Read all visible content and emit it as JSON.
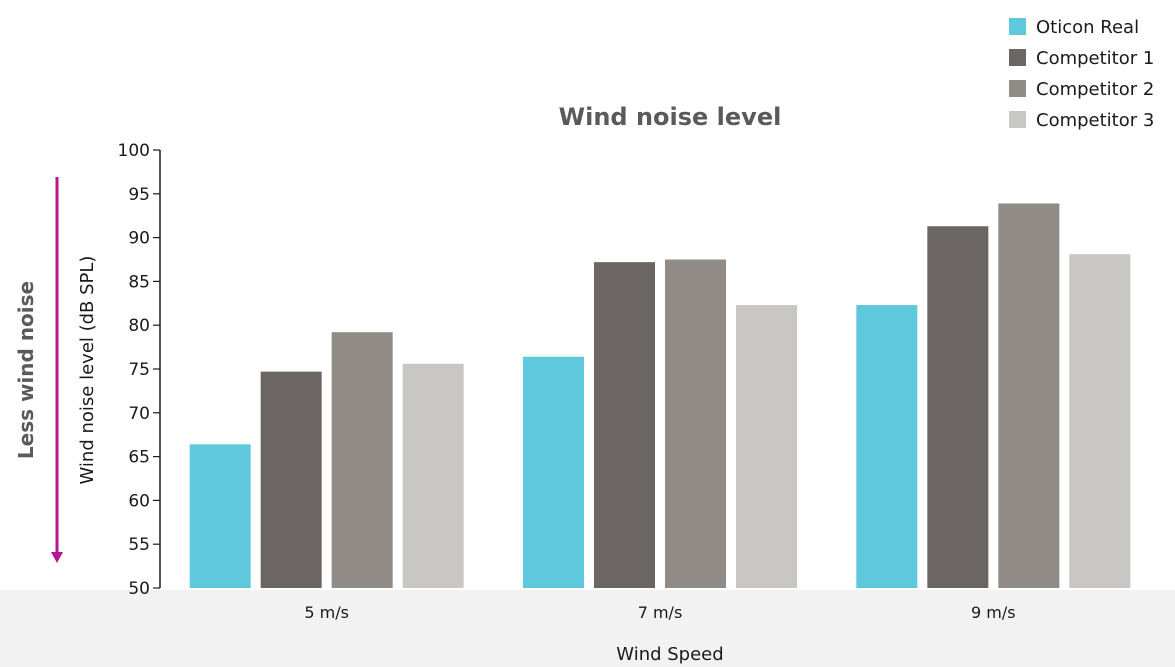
{
  "chart_data": {
    "type": "bar",
    "title": "Wind noise level",
    "xlabel": "Wind Speed",
    "ylabel": "Wind noise level (dB SPL)",
    "annotation": "Less wind noise",
    "categories": [
      "5 m/s",
      "7 m/s",
      "9 m/s"
    ],
    "ylim": [
      50,
      100
    ],
    "yticks": [
      50,
      55,
      60,
      65,
      70,
      75,
      80,
      85,
      90,
      95,
      100
    ],
    "grid": false,
    "legend_position": "top-right",
    "series": [
      {
        "name": "Oticon Real",
        "color": "#5ec9dc",
        "values": [
          66.4,
          76.4,
          82.3
        ]
      },
      {
        "name": "Competitor 1",
        "color": "#6b6664",
        "values": [
          74.7,
          87.2,
          91.3
        ]
      },
      {
        "name": "Competitor 2",
        "color": "#918c88",
        "values": [
          79.2,
          87.5,
          93.9
        ]
      },
      {
        "name": "Competitor 3",
        "color": "#c9c7c3",
        "values": [
          75.6,
          82.3,
          88.1
        ]
      }
    ],
    "annotation_color": "#b5178e",
    "text_color": "#1a1a1a",
    "title_color": "#5a5a5a"
  }
}
